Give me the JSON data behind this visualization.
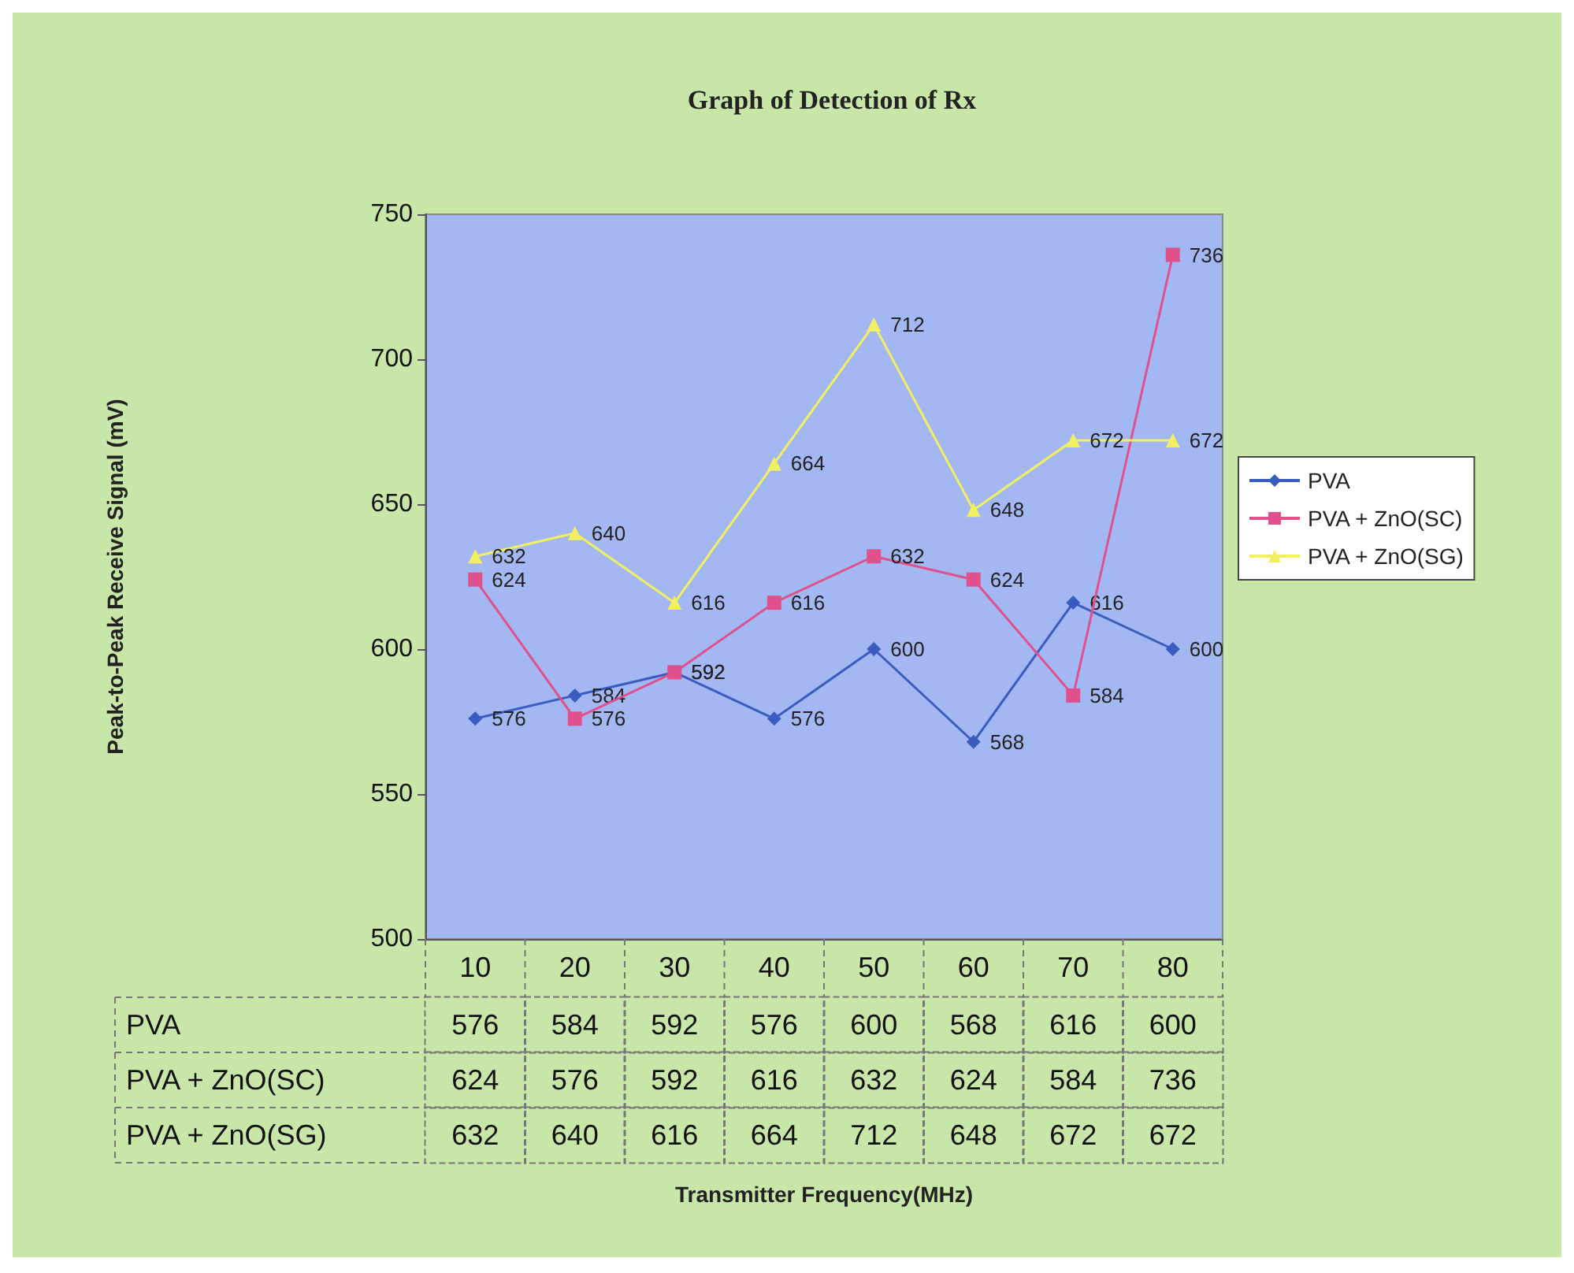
{
  "chart_data": [
    {
      "type": "line",
      "title": "Graph of Detection of Rx",
      "ylabel": "Peak-to-Peak Receive Signal (mV)",
      "categories": [
        "10",
        "20",
        "30",
        "40",
        "50",
        "60",
        "70",
        "80"
      ],
      "series": [
        {
          "name": "PVA",
          "color": "#3a5cc0",
          "marker": "diamond",
          "values": [
            576,
            584,
            592,
            576,
            600,
            568,
            616,
            600
          ],
          "value_labels": [
            "576",
            "584",
            "592",
            "576",
            "600",
            "568",
            "616",
            "600"
          ]
        },
        {
          "name": "PVA + ZnO(SC)",
          "color": "#e0508c",
          "marker": "square",
          "values": [
            624,
            576,
            592,
            616,
            632,
            624,
            584,
            736
          ],
          "value_labels": [
            "624",
            "576",
            "592",
            "616",
            "632",
            "624",
            "584",
            "736"
          ]
        },
        {
          "name": "PVA + ZnO(SG)",
          "color": "#f2f060",
          "marker": "triangle",
          "values": [
            632,
            640,
            616,
            664,
            712,
            648,
            672,
            672
          ],
          "value_labels": [
            "632",
            "640",
            "616",
            "664",
            "712",
            "648",
            "672",
            "672"
          ]
        }
      ],
      "ylim": [
        500,
        750
      ],
      "yticks": [
        500,
        550,
        600,
        650,
        700,
        750
      ],
      "grid": false,
      "legend": "right",
      "line_style": "solid",
      "tick_labels": "y"
    },
    {
      "type": "heatmap",
      "xlabel": "Transmitter Frequency(MHz)",
      "categories": [
        "10",
        "20",
        "30",
        "40",
        "50",
        "60",
        "70",
        "80"
      ],
      "y_categories": [
        "PVA",
        "PVA + ZnO(SC)",
        "PVA + ZnO(SG)"
      ],
      "cells": [
        [
          576,
          584,
          592,
          576,
          600,
          568,
          616,
          600
        ],
        [
          624,
          576,
          592,
          616,
          632,
          624,
          584,
          736
        ],
        [
          632,
          640,
          616,
          664,
          712,
          648,
          672,
          672
        ]
      ],
      "data_labels": true
    }
  ]
}
